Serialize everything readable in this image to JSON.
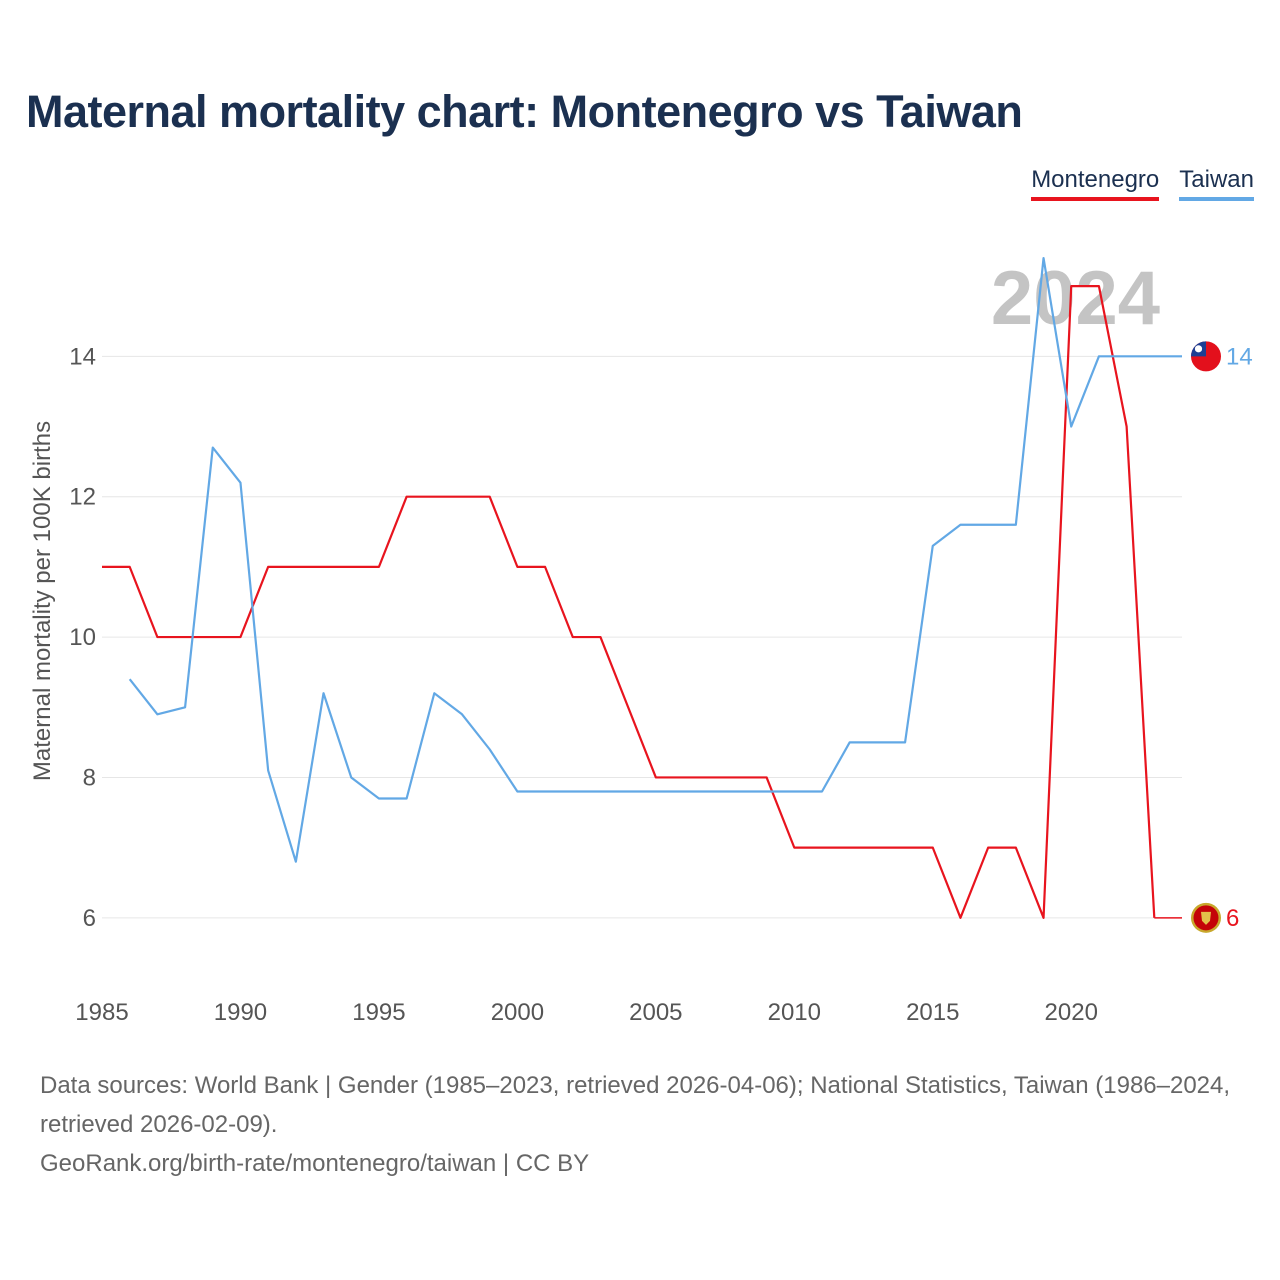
{
  "title": "Maternal mortality chart: Montenegro vs Taiwan",
  "legend": {
    "montenegro": "Montenegro",
    "taiwan": "Taiwan"
  },
  "year_watermark": "2024",
  "footer": {
    "sources": "Data sources: World Bank | Gender (1985–2023, retrieved 2026-04-06); National Statistics, Taiwan (1986–2024, retrieved 2026-02-09).",
    "credit": "GeoRank.org/birth-rate/montenegro/taiwan | CC BY"
  },
  "chart_data": {
    "type": "line",
    "title": "Maternal mortality chart: Montenegro vs Taiwan",
    "xlabel": "",
    "ylabel": "Maternal mortality per 100K births",
    "xlim": [
      1985,
      2024
    ],
    "ylim": [
      5,
      15.8
    ],
    "x_ticks": [
      1985,
      1990,
      1995,
      2000,
      2005,
      2010,
      2015,
      2020
    ],
    "y_ticks": [
      6,
      8,
      10,
      12,
      14
    ],
    "grid": true,
    "legend_position": "top-right",
    "series": [
      {
        "name": "Montenegro",
        "color": "#e8141e",
        "x": [
          1985,
          1986,
          1987,
          1988,
          1989,
          1990,
          1991,
          1992,
          1993,
          1994,
          1995,
          1996,
          1997,
          1998,
          1999,
          2000,
          2001,
          2002,
          2003,
          2004,
          2005,
          2006,
          2007,
          2008,
          2009,
          2010,
          2011,
          2012,
          2013,
          2014,
          2015,
          2016,
          2017,
          2018,
          2019,
          2020,
          2021,
          2022,
          2023
        ],
        "values": [
          11,
          11,
          10,
          10,
          10,
          10,
          11,
          11,
          11,
          11,
          11,
          12,
          12,
          12,
          12,
          11,
          11,
          10,
          10,
          9,
          8,
          8,
          8,
          8,
          8,
          7,
          7,
          7,
          7,
          7,
          7,
          6,
          7,
          7,
          6,
          15,
          15,
          13,
          6
        ],
        "end_label": "6",
        "end_icon": "montenegro-flag-icon"
      },
      {
        "name": "Taiwan",
        "color": "#62a8e5",
        "x": [
          1986,
          1987,
          1988,
          1989,
          1990,
          1991,
          1992,
          1993,
          1994,
          1995,
          1996,
          1997,
          1998,
          1999,
          2000,
          2001,
          2002,
          2003,
          2004,
          2005,
          2006,
          2007,
          2008,
          2009,
          2010,
          2011,
          2012,
          2013,
          2014,
          2015,
          2016,
          2017,
          2018,
          2019,
          2020,
          2021,
          2022,
          2023,
          2024
        ],
        "values": [
          9.4,
          8.9,
          9.0,
          12.7,
          12.2,
          8.1,
          6.8,
          9.2,
          8.0,
          7.7,
          7.7,
          9.2,
          8.9,
          8.4,
          7.8,
          7.8,
          7.8,
          7.8,
          7.8,
          7.8,
          7.8,
          7.8,
          7.8,
          7.8,
          7.8,
          7.8,
          8.5,
          8.5,
          8.5,
          11.3,
          11.6,
          11.6,
          11.6,
          15.4,
          13.0,
          14.0,
          14.0,
          14.0,
          14.0
        ],
        "end_label": "14",
        "end_icon": "taiwan-flag-icon"
      }
    ]
  }
}
